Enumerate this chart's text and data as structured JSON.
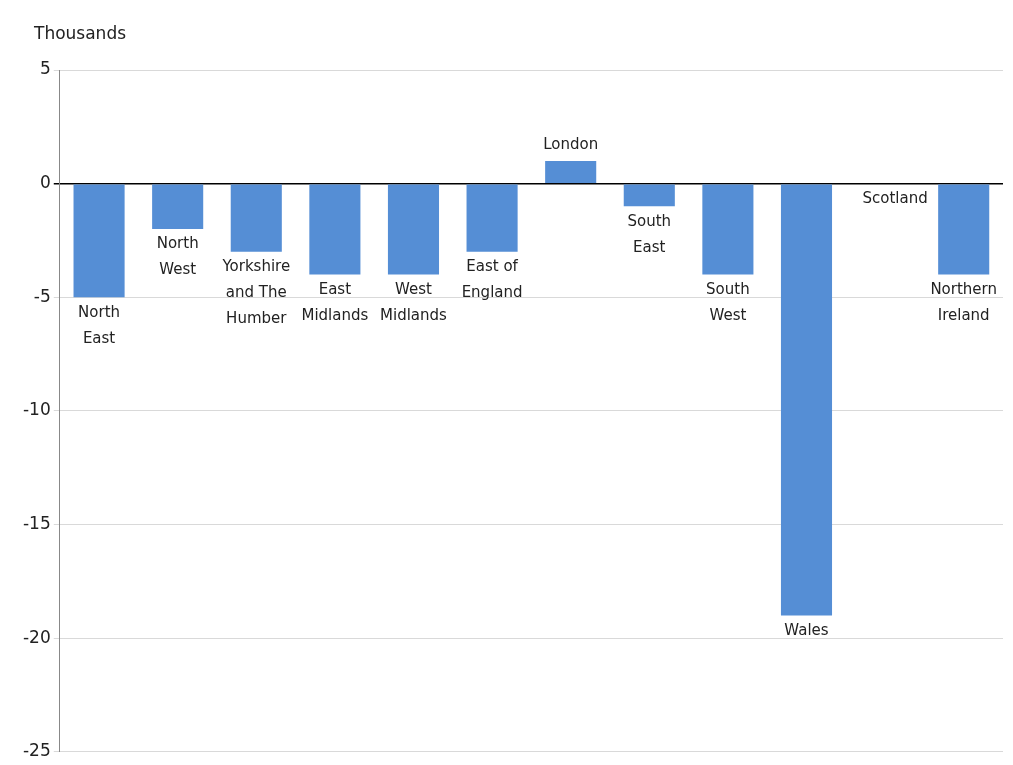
{
  "chart_data": {
    "type": "bar",
    "ylabel": "Thousands",
    "categories": [
      "North East",
      "North West",
      "Yorkshire and The Humber",
      "East Midlands",
      "West Midlands",
      "East of England",
      "London",
      "South East",
      "South West",
      "Wales",
      "Scotland",
      "Northern Ireland"
    ],
    "values": [
      -5,
      -2,
      -3,
      -4,
      -4,
      -3,
      1,
      -1,
      -4,
      -19,
      0,
      -4
    ],
    "color": "#558ed5",
    "ylim": [
      -25,
      5
    ],
    "yticks": [
      -25,
      -20,
      -15,
      -10,
      -5,
      0,
      5
    ],
    "grid": "y",
    "legend": false
  }
}
